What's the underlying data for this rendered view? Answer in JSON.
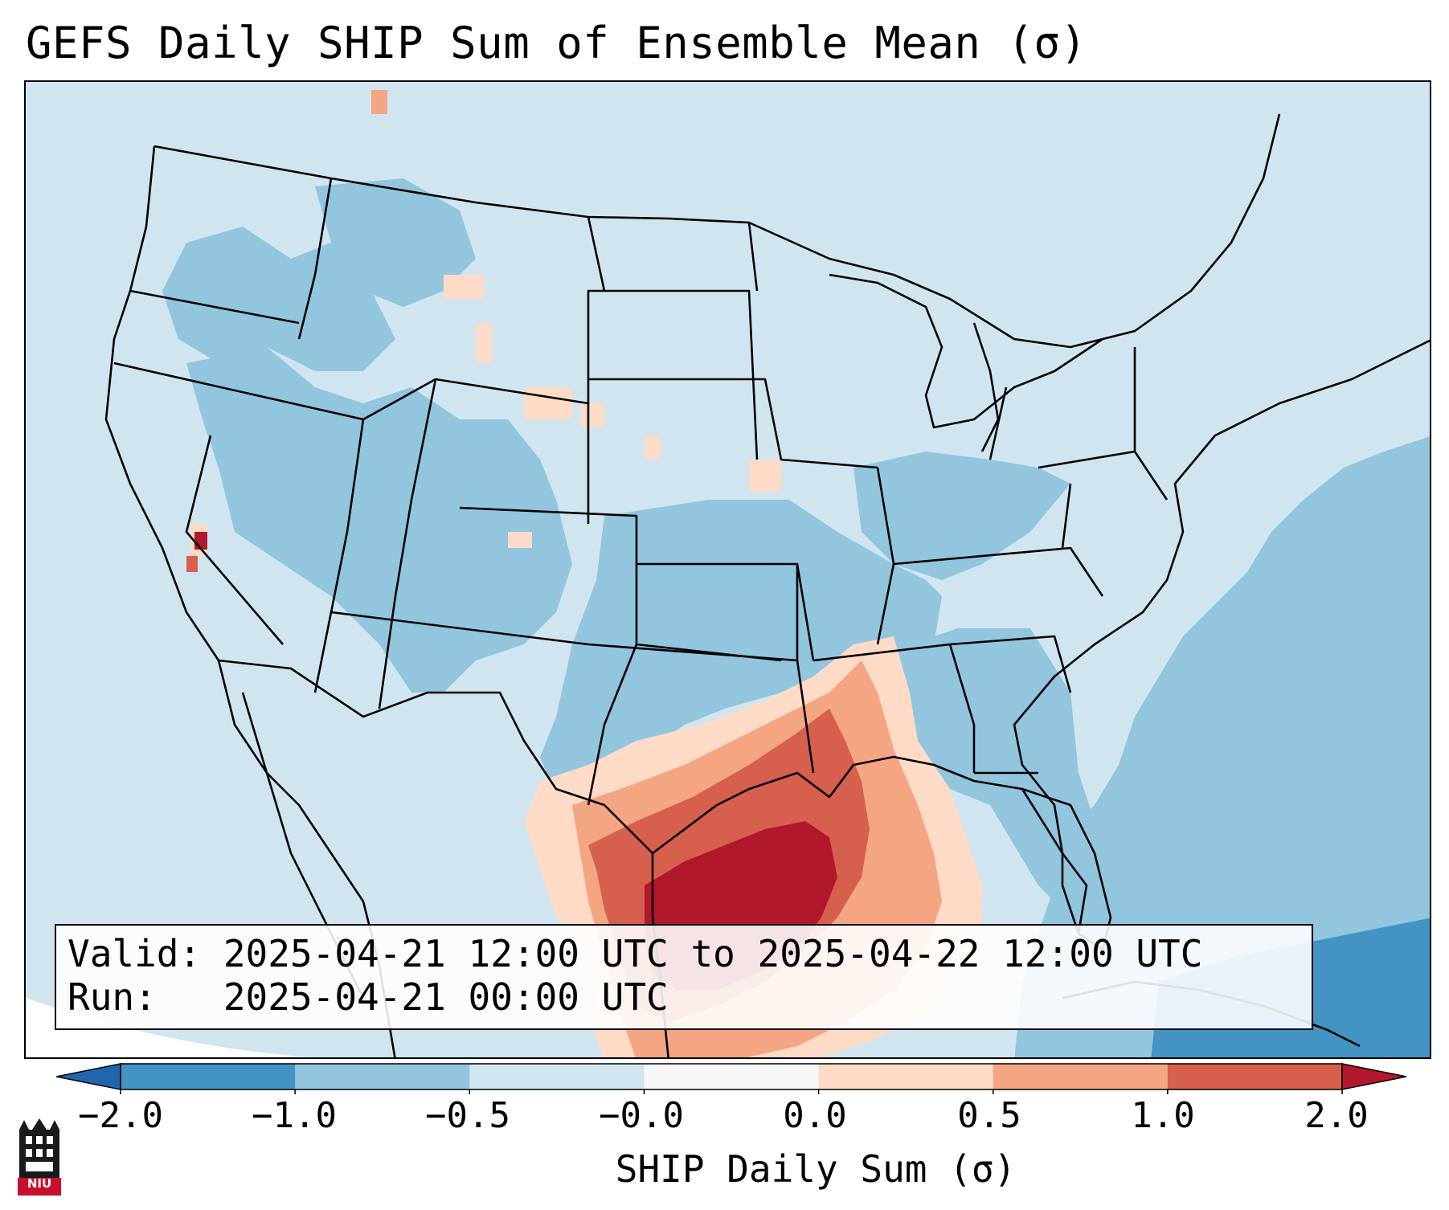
{
  "title": "GEFS Daily SHIP Sum of Ensemble Mean (σ)",
  "info": {
    "valid_line": "Valid: 2025-04-21 12:00 UTC to 2025-04-22 12:00 UTC",
    "run_line": "Run:   2025-04-21 00:00 UTC"
  },
  "colorbar": {
    "label": "SHIP Daily Sum (σ)",
    "ticks": [
      "−2.0",
      "−1.0",
      "−0.5",
      "−0.0",
      "0.0",
      "0.5",
      "1.0",
      "2.0"
    ],
    "bins": [
      {
        "range": "< -2.0",
        "color": "#2166ac"
      },
      {
        "range": "-2.0 to -1.0",
        "color": "#4393c3"
      },
      {
        "range": "-1.0 to -0.5",
        "color": "#92c5de"
      },
      {
        "range": "-0.5 to -0.0",
        "color": "#d1e5f0"
      },
      {
        "range": "-0.0 to 0.0",
        "color": "#f7f7f7"
      },
      {
        "range": "0.0 to 0.5",
        "color": "#fddbc7"
      },
      {
        "range": "0.5 to 1.0",
        "color": "#f4a582"
      },
      {
        "range": "1.0 to 2.0",
        "color": "#d6604d"
      },
      {
        "range": "> 2.0",
        "color": "#b2182b"
      }
    ]
  },
  "map_field": {
    "region": "Continental United States",
    "background_class": "-0.5 to -0.0",
    "features": [
      {
        "area": "Texas Gulf Coast / Houston",
        "class": "> 2.0"
      },
      {
        "area": "Louisiana / East Texas",
        "class": "1.0 to 2.0"
      },
      {
        "area": "Mississippi / Gulf waters",
        "class": "0.5 to 1.0"
      },
      {
        "area": "Alabama / South Texas",
        "class": "0.0 to 0.5"
      },
      {
        "area": "Atlantic Ocean / Southeast",
        "class": "-1.0 to -0.5"
      },
      {
        "area": "Caribbean / Cuba",
        "class": "-2.0 to -1.0"
      },
      {
        "area": "Central Plains / Southwest",
        "class": "-1.0 to -0.5"
      },
      {
        "area": "Montana / Wyoming patches",
        "class": "0.0 to 0.5"
      },
      {
        "area": "Nevada / California spot",
        "class": "1.0 to 2.0"
      }
    ]
  },
  "logo": {
    "text": "NIU"
  }
}
